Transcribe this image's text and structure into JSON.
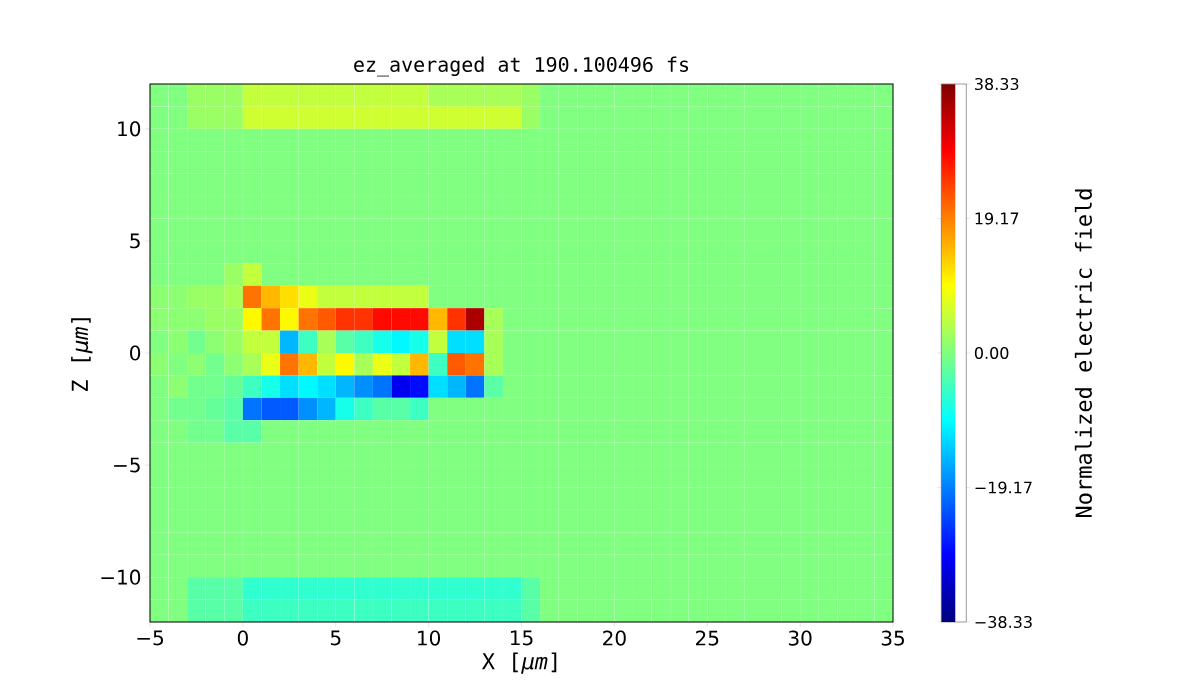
{
  "chart_data": {
    "type": "heatmap",
    "title": "ez_averaged at 190.100496 fs",
    "xlabel": "X [*μm*]",
    "ylabel": "Z [*μm*]",
    "clabel": "Normalized electric field",
    "xlim": [
      -5,
      35
    ],
    "ylim": [
      -12,
      12
    ],
    "xticks": [
      {
        "value": -5,
        "label": "−5"
      },
      0,
      5,
      10,
      15,
      20,
      25,
      30,
      35
    ],
    "yticks": [
      {
        "value": -10,
        "label": "−10"
      },
      {
        "value": -5,
        "label": "−5"
      },
      0,
      5,
      10
    ],
    "clim": [
      -38.33,
      38.33
    ],
    "cticks": [
      {
        "value": -38.33,
        "label": "−38.33"
      },
      {
        "value": -19.17,
        "label": "−19.17"
      },
      {
        "value": 0,
        "label": "0.00"
      },
      19.17,
      38.33
    ],
    "cells": [
      [
        0,
        0,
        2,
        2,
        2,
        5,
        5,
        5,
        5,
        5,
        5,
        5,
        5,
        5,
        5,
        3,
        3,
        3,
        3,
        3,
        2,
        0,
        0,
        0,
        0,
        0,
        0,
        0,
        0,
        0,
        0,
        0,
        0,
        0,
        0,
        0,
        0,
        0,
        0,
        0
      ],
      [
        0,
        0,
        2,
        2,
        2,
        6,
        6,
        6,
        6,
        6,
        6,
        6,
        6,
        6,
        6,
        6,
        6,
        6,
        6,
        6,
        2,
        0,
        0,
        0,
        0,
        0,
        0,
        0,
        0,
        0,
        0,
        0,
        0,
        0,
        0,
        0,
        0,
        0,
        0,
        0
      ],
      [
        0,
        0,
        0,
        0,
        0,
        0,
        0,
        0,
        0,
        0,
        0,
        0,
        0,
        0,
        0,
        0,
        0,
        0,
        0,
        0,
        0,
        0,
        0,
        0,
        0,
        0,
        0,
        0,
        0,
        0,
        0,
        0,
        0,
        0,
        0,
        0,
        0,
        0,
        0,
        0
      ],
      [
        0,
        0,
        0,
        0,
        0,
        0,
        0,
        0,
        0,
        0,
        0,
        0,
        0,
        0,
        0,
        0,
        0,
        0,
        0,
        0,
        0,
        0,
        0,
        0,
        0,
        0,
        0,
        0,
        0,
        0,
        0,
        0,
        0,
        0,
        0,
        0,
        0,
        0,
        0,
        0
      ],
      [
        0,
        0,
        0,
        0,
        0,
        0,
        0,
        0,
        0,
        0,
        0,
        0,
        0,
        0,
        0,
        0,
        0,
        0,
        0,
        0,
        0,
        0,
        0,
        0,
        0,
        0,
        0,
        0,
        0,
        0,
        0,
        0,
        0,
        0,
        0,
        0,
        0,
        0,
        0,
        0
      ],
      [
        0,
        0,
        0,
        0,
        0,
        0,
        0,
        0,
        0,
        0,
        0,
        0,
        0,
        0,
        0,
        0,
        0,
        0,
        0,
        0,
        0,
        0,
        0,
        0,
        0,
        0,
        0,
        0,
        0,
        0,
        0,
        0,
        0,
        0,
        0,
        0,
        0,
        0,
        0,
        0
      ],
      [
        0,
        0,
        0,
        0,
        0,
        0,
        0,
        0,
        0,
        0,
        0,
        0,
        0,
        0,
        0,
        0,
        0,
        0,
        0,
        0,
        0,
        0,
        0,
        0,
        0,
        0,
        0,
        0,
        0,
        0,
        0,
        0,
        0,
        0,
        0,
        0,
        0,
        0,
        0,
        0
      ],
      [
        0,
        0,
        0,
        0,
        0,
        0,
        0,
        0,
        0,
        0,
        0,
        0,
        0,
        0,
        0,
        0,
        0,
        0,
        0,
        0,
        0,
        0,
        0,
        0,
        0,
        0,
        0,
        0,
        0,
        0,
        0,
        0,
        0,
        0,
        0,
        0,
        0,
        0,
        0,
        0
      ],
      [
        0,
        0,
        0,
        0,
        2,
        5,
        0,
        0,
        0,
        0,
        0,
        0,
        0,
        0,
        0,
        0,
        0,
        0,
        0,
        0,
        0,
        0,
        0,
        0,
        0,
        0,
        0,
        0,
        0,
        0,
        0,
        0,
        0,
        0,
        0,
        0,
        0,
        0,
        0,
        0
      ],
      [
        1,
        1,
        2,
        2,
        3,
        20,
        15,
        12,
        8,
        5,
        5,
        5,
        5,
        5,
        5,
        0,
        0,
        0,
        0,
        0,
        0,
        0,
        0,
        0,
        0,
        0,
        0,
        0,
        0,
        0,
        0,
        0,
        0,
        0,
        0,
        0,
        0,
        0,
        0,
        0
      ],
      [
        1,
        1,
        1,
        2,
        2,
        10,
        20,
        10,
        20,
        22,
        25,
        25,
        28,
        28,
        28,
        15,
        25,
        35,
        3,
        0,
        0,
        0,
        0,
        0,
        0,
        0,
        0,
        0,
        0,
        0,
        0,
        0,
        0,
        0,
        0,
        0,
        0,
        0,
        0,
        0
      ],
      [
        0,
        1,
        -1,
        1,
        2,
        5,
        5,
        -15,
        -5,
        3,
        -3,
        -5,
        -8,
        -10,
        -8,
        5,
        -12,
        -12,
        3,
        0,
        0,
        0,
        0,
        0,
        0,
        0,
        0,
        0,
        0,
        0,
        0,
        0,
        0,
        0,
        0,
        0,
        0,
        0,
        0,
        0
      ],
      [
        1,
        0,
        1,
        -1,
        1,
        3,
        8,
        20,
        15,
        5,
        10,
        3,
        8,
        5,
        15,
        -5,
        22,
        20,
        3,
        0,
        0,
        0,
        0,
        0,
        0,
        0,
        0,
        0,
        0,
        0,
        0,
        0,
        0,
        0,
        0,
        0,
        0,
        0,
        0,
        0
      ],
      [
        0,
        1,
        -1,
        -1,
        -2,
        -5,
        -8,
        -12,
        -10,
        -12,
        -15,
        -18,
        -20,
        -30,
        -28,
        -12,
        -15,
        -20,
        -3,
        0,
        0,
        0,
        0,
        0,
        0,
        0,
        0,
        0,
        0,
        0,
        0,
        0,
        0,
        0,
        0,
        0,
        0,
        0,
        0,
        0
      ],
      [
        0,
        -1,
        -1,
        -2,
        -3,
        -20,
        -22,
        -22,
        -18,
        -15,
        -8,
        -5,
        -3,
        -3,
        -5,
        0,
        0,
        0,
        0,
        0,
        0,
        0,
        0,
        0,
        0,
        0,
        0,
        0,
        0,
        0,
        0,
        0,
        0,
        0,
        0,
        0,
        0,
        0,
        0,
        0
      ],
      [
        0,
        0,
        -1,
        -1,
        -3,
        -3,
        0,
        0,
        0,
        0,
        0,
        0,
        0,
        0,
        0,
        0,
        0,
        0,
        0,
        0,
        0,
        0,
        0,
        0,
        0,
        0,
        0,
        0,
        0,
        0,
        0,
        0,
        0,
        0,
        0,
        0,
        0,
        0,
        0,
        0
      ],
      [
        0,
        0,
        0,
        0,
        0,
        0,
        0,
        0,
        0,
        0,
        0,
        0,
        0,
        0,
        0,
        0,
        0,
        0,
        0,
        0,
        0,
        0,
        0,
        0,
        0,
        0,
        0,
        0,
        0,
        0,
        0,
        0,
        0,
        0,
        0,
        0,
        0,
        0,
        0,
        0
      ],
      [
        0,
        0,
        0,
        0,
        0,
        0,
        0,
        0,
        0,
        0,
        0,
        0,
        0,
        0,
        0,
        0,
        0,
        0,
        0,
        0,
        0,
        0,
        0,
        0,
        0,
        0,
        0,
        0,
        0,
        0,
        0,
        0,
        0,
        0,
        0,
        0,
        0,
        0,
        0,
        0
      ],
      [
        0,
        0,
        0,
        0,
        0,
        0,
        0,
        0,
        0,
        0,
        0,
        0,
        0,
        0,
        0,
        0,
        0,
        0,
        0,
        0,
        0,
        0,
        0,
        0,
        0,
        0,
        0,
        0,
        0,
        0,
        0,
        0,
        0,
        0,
        0,
        0,
        0,
        0,
        0,
        0
      ],
      [
        0,
        0,
        0,
        0,
        0,
        0,
        0,
        0,
        0,
        0,
        0,
        0,
        0,
        0,
        0,
        0,
        0,
        0,
        0,
        0,
        0,
        0,
        0,
        0,
        0,
        0,
        0,
        0,
        0,
        0,
        0,
        0,
        0,
        0,
        0,
        0,
        0,
        0,
        0,
        0
      ],
      [
        0,
        0,
        0,
        0,
        0,
        0,
        0,
        0,
        0,
        0,
        0,
        0,
        0,
        0,
        0,
        0,
        0,
        0,
        0,
        0,
        0,
        0,
        0,
        0,
        0,
        0,
        0,
        0,
        0,
        0,
        0,
        0,
        0,
        0,
        0,
        0,
        0,
        0,
        0,
        0
      ],
      [
        0,
        0,
        0,
        0,
        0,
        0,
        0,
        0,
        0,
        0,
        0,
        0,
        0,
        0,
        0,
        0,
        0,
        0,
        0,
        0,
        0,
        0,
        0,
        0,
        0,
        0,
        0,
        0,
        0,
        0,
        0,
        0,
        0,
        0,
        0,
        0,
        0,
        0,
        0,
        0
      ],
      [
        0,
        0,
        -3,
        -3,
        -3,
        -6,
        -6,
        -6,
        -6,
        -6,
        -6,
        -6,
        -6,
        -6,
        -6,
        -6,
        -6,
        -6,
        -6,
        -6,
        -3,
        0,
        0,
        0,
        0,
        0,
        0,
        0,
        0,
        0,
        0,
        0,
        0,
        0,
        0,
        0,
        0,
        0,
        0,
        0
      ],
      [
        0,
        0,
        -3,
        -3,
        -3,
        -5,
        -5,
        -5,
        -5,
        -5,
        -5,
        -5,
        -5,
        -5,
        -5,
        -5,
        -5,
        -5,
        -5,
        -5,
        -3,
        0,
        0,
        0,
        0,
        0,
        0,
        0,
        0,
        0,
        0,
        0,
        0,
        0,
        0,
        0,
        0,
        0,
        0,
        0
      ]
    ]
  }
}
